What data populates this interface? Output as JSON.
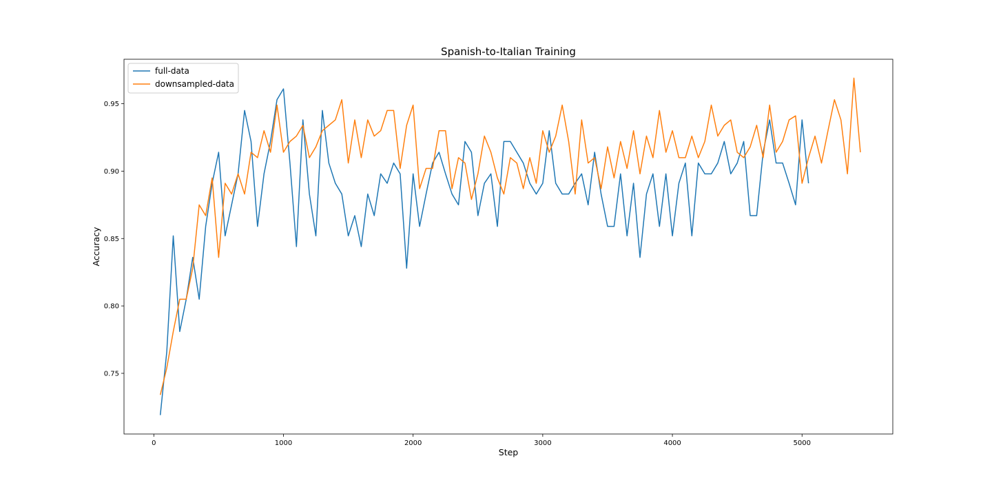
{
  "chart_data": {
    "type": "line",
    "title": "Spanish-to-Italian Training",
    "xlabel": "Step",
    "ylabel": "Accuracy",
    "xlim": [
      -230,
      5700
    ],
    "ylim": [
      0.705,
      0.983
    ],
    "xticks": [
      0,
      1000,
      2000,
      3000,
      4000,
      5000
    ],
    "xtick_labels": [
      "0",
      "1000",
      "2000",
      "3000",
      "4000",
      "5000"
    ],
    "yticks": [
      0.75,
      0.8,
      0.85,
      0.9,
      0.95
    ],
    "ytick_labels": [
      "0.75",
      "0.80",
      "0.85",
      "0.90",
      "0.95"
    ],
    "grid": false,
    "legend_position": "top-left",
    "series": [
      {
        "name": "full-data",
        "color": "#1f77b4",
        "x": [
          50,
          100,
          150,
          200,
          250,
          300,
          350,
          400,
          450,
          500,
          550,
          600,
          650,
          700,
          750,
          800,
          850,
          900,
          950,
          1000,
          1050,
          1100,
          1150,
          1200,
          1250,
          1300,
          1350,
          1400,
          1450,
          1500,
          1550,
          1600,
          1650,
          1700,
          1750,
          1800,
          1850,
          1900,
          1950,
          2000,
          2050,
          2100,
          2150,
          2200,
          2250,
          2300,
          2350,
          2400,
          2450,
          2500,
          2550,
          2600,
          2650,
          2700,
          2750,
          2800,
          2850,
          2900,
          2950,
          3000,
          3050,
          3100,
          3150,
          3200,
          3250,
          3300,
          3350,
          3400,
          3450,
          3500,
          3550,
          3600,
          3650,
          3700,
          3750,
          3800,
          3850,
          3900,
          3950,
          4000,
          4050,
          4100,
          4150,
          4200,
          4250,
          4300,
          4350,
          4400,
          4450,
          4500,
          4550,
          4600,
          4650,
          4700,
          4750,
          4800,
          4850,
          4900,
          4950,
          5000,
          5050
        ],
        "y": [
          0.719,
          0.766,
          0.852,
          0.781,
          0.805,
          0.836,
          0.805,
          0.859,
          0.891,
          0.914,
          0.852,
          0.875,
          0.898,
          0.945,
          0.922,
          0.859,
          0.898,
          0.922,
          0.953,
          0.961,
          0.906,
          0.844,
          0.938,
          0.883,
          0.852,
          0.945,
          0.906,
          0.891,
          0.883,
          0.852,
          0.867,
          0.844,
          0.883,
          0.867,
          0.898,
          0.891,
          0.906,
          0.898,
          0.828,
          0.898,
          0.859,
          0.883,
          0.906,
          0.914,
          0.898,
          0.883,
          0.875,
          0.922,
          0.914,
          0.867,
          0.891,
          0.898,
          0.859,
          0.922,
          0.922,
          0.914,
          0.906,
          0.891,
          0.883,
          0.891,
          0.93,
          0.891,
          0.883,
          0.883,
          0.891,
          0.898,
          0.875,
          0.914,
          0.883,
          0.859,
          0.859,
          0.898,
          0.852,
          0.891,
          0.836,
          0.883,
          0.898,
          0.859,
          0.898,
          0.852,
          0.891,
          0.906,
          0.852,
          0.906,
          0.898,
          0.898,
          0.906,
          0.922,
          0.898,
          0.906,
          0.922,
          0.867,
          0.867,
          0.914,
          0.938,
          0.906,
          0.906,
          0.891,
          0.875,
          0.938,
          0.891
        ]
      },
      {
        "name": "downsampled-data",
        "color": "#ff7f0e",
        "x": [
          50,
          100,
          150,
          200,
          250,
          300,
          350,
          400,
          450,
          500,
          550,
          600,
          650,
          700,
          750,
          800,
          850,
          900,
          950,
          1000,
          1050,
          1100,
          1150,
          1200,
          1250,
          1300,
          1350,
          1400,
          1450,
          1500,
          1550,
          1600,
          1650,
          1700,
          1750,
          1800,
          1850,
          1900,
          1950,
          2000,
          2050,
          2100,
          2150,
          2200,
          2250,
          2300,
          2350,
          2400,
          2450,
          2500,
          2550,
          2600,
          2650,
          2700,
          2750,
          2800,
          2850,
          2900,
          2950,
          3000,
          3050,
          3100,
          3150,
          3200,
          3250,
          3300,
          3350,
          3400,
          3450,
          3500,
          3550,
          3600,
          3650,
          3700,
          3750,
          3800,
          3850,
          3900,
          3950,
          4000,
          4050,
          4100,
          4150,
          4200,
          4250,
          4300,
          4350,
          4400,
          4450,
          4500,
          4550,
          4600,
          4650,
          4700,
          4750,
          4800,
          4850,
          4900,
          4950,
          5000,
          5050,
          5100,
          5150,
          5200,
          5250,
          5300,
          5350,
          5400,
          5450
        ],
        "y": [
          0.734,
          0.754,
          0.781,
          0.805,
          0.805,
          0.828,
          0.875,
          0.867,
          0.895,
          0.836,
          0.891,
          0.883,
          0.898,
          0.883,
          0.914,
          0.91,
          0.93,
          0.914,
          0.949,
          0.914,
          0.922,
          0.926,
          0.934,
          0.91,
          0.918,
          0.93,
          0.934,
          0.938,
          0.953,
          0.906,
          0.938,
          0.91,
          0.938,
          0.926,
          0.93,
          0.945,
          0.945,
          0.902,
          0.934,
          0.949,
          0.887,
          0.902,
          0.902,
          0.93,
          0.93,
          0.887,
          0.91,
          0.906,
          0.879,
          0.898,
          0.926,
          0.914,
          0.895,
          0.883,
          0.91,
          0.906,
          0.887,
          0.91,
          0.891,
          0.93,
          0.914,
          0.926,
          0.949,
          0.922,
          0.883,
          0.938,
          0.906,
          0.91,
          0.887,
          0.918,
          0.895,
          0.922,
          0.902,
          0.93,
          0.898,
          0.926,
          0.91,
          0.945,
          0.914,
          0.93,
          0.91,
          0.91,
          0.926,
          0.91,
          0.922,
          0.949,
          0.926,
          0.934,
          0.938,
          0.914,
          0.91,
          0.918,
          0.934,
          0.91,
          0.949,
          0.914,
          0.922,
          0.938,
          0.941,
          0.891,
          0.91,
          0.926,
          0.906,
          0.93,
          0.953,
          0.938,
          0.898,
          0.969,
          0.914
        ]
      }
    ]
  }
}
